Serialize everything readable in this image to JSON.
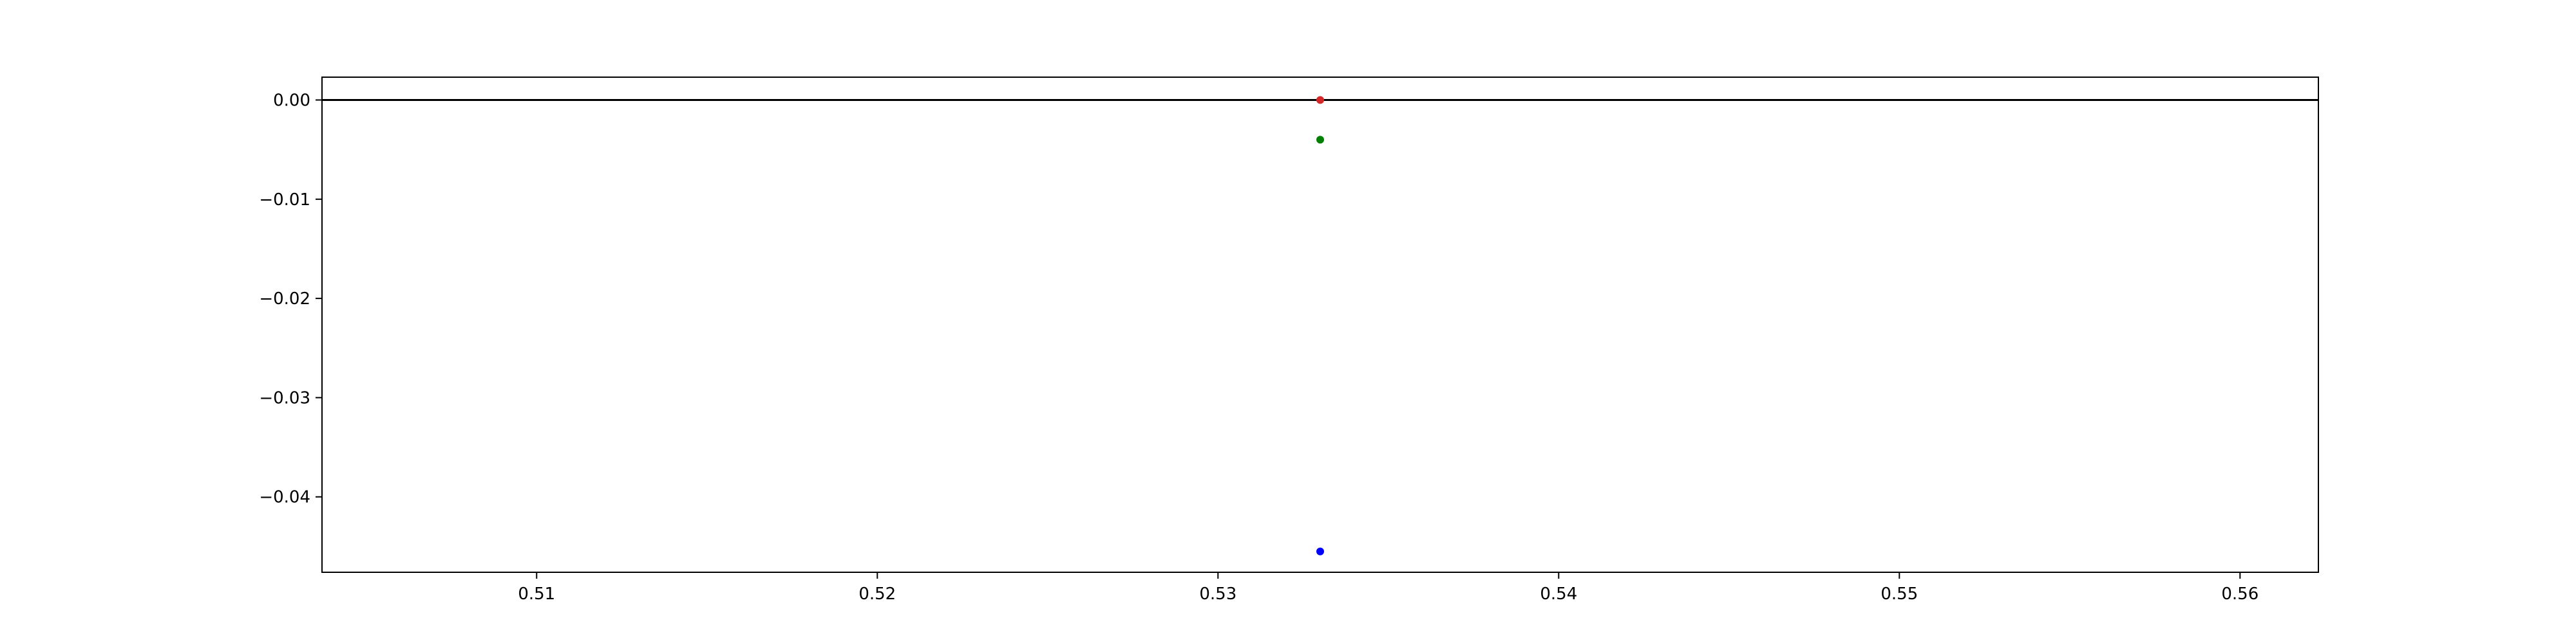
{
  "chart_data": {
    "type": "scatter",
    "title": "",
    "xlabel": "",
    "ylabel": "",
    "xlim": [
      0.5037,
      0.5623
    ],
    "ylim": [
      -0.0476,
      0.0023
    ],
    "grid": false,
    "x_ticks": [
      0.51,
      0.52,
      0.53,
      0.54,
      0.55,
      0.56
    ],
    "x_tick_labels": [
      "0.51",
      "0.52",
      "0.53",
      "0.54",
      "0.55",
      "0.56"
    ],
    "y_ticks": [
      0.0,
      -0.01,
      -0.02,
      -0.03,
      -0.04
    ],
    "y_tick_labels": [
      "0.00",
      "−0.01",
      "−0.02",
      "−0.03",
      "−0.04"
    ],
    "reference_line": {
      "y": 0.0,
      "color": "#000000"
    },
    "points": [
      {
        "x": 0.533,
        "y": 0.0,
        "color": "#d62728"
      },
      {
        "x": 0.533,
        "y": -0.004,
        "color": "#008000"
      },
      {
        "x": 0.533,
        "y": -0.0455,
        "color": "#0000ff"
      }
    ]
  }
}
